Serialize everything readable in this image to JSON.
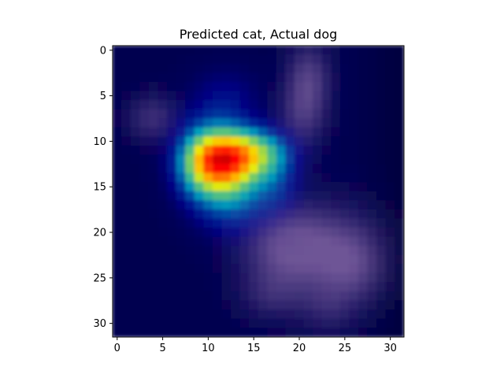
{
  "chart_data": {
    "type": "heatmap",
    "title": "Predicted cat, Actual dog",
    "xlabel": "",
    "ylabel": "",
    "image_shape": [
      32,
      32
    ],
    "xlim": [
      -0.5,
      31.5
    ],
    "ylim": [
      31.5,
      -0.5
    ],
    "y_axis_inverted": true,
    "x_ticks": [
      0,
      5,
      10,
      15,
      20,
      25,
      30
    ],
    "y_ticks": [
      0,
      5,
      10,
      15,
      20,
      25,
      30
    ],
    "colormap": "jet",
    "grid": false,
    "legend": "none",
    "overlay_description": "Class-activation heatmap overlaid on a blurred photo of a dog; activation peaks around column 12, row 12.",
    "heat_peak": {
      "col": 12,
      "row": 12
    },
    "heatmap_components": [
      {
        "col": 12,
        "row": 12,
        "sigma_col": 3.0,
        "sigma_row": 2.6,
        "weight": 1.0
      },
      {
        "col": 9,
        "row": 12.5,
        "sigma_col": 2.5,
        "sigma_row": 3.5,
        "weight": 0.55
      },
      {
        "col": 16,
        "row": 11,
        "sigma_col": 3.0,
        "sigma_row": 2.0,
        "weight": 0.5
      },
      {
        "col": 13,
        "row": 17,
        "sigma_col": 3.0,
        "sigma_row": 3.0,
        "weight": 0.45
      },
      {
        "col": 12,
        "row": 5,
        "sigma_col": 3.0,
        "sigma_row": 2.5,
        "weight": 0.3
      },
      {
        "col": 18,
        "row": 15,
        "sigma_col": 2.0,
        "sigma_row": 3.0,
        "weight": 0.3
      }
    ],
    "background_color": "#00004f",
    "underlay_color": "#8a6aa8",
    "underlay_regions": [
      {
        "label": "left ear",
        "col": 4,
        "row": 7.5,
        "sigma_col": 2.0,
        "sigma_row": 1.8,
        "weight": 0.55
      },
      {
        "label": "right ear",
        "col": 21,
        "row": 3.5,
        "sigma_col": 1.7,
        "sigma_row": 3.0,
        "weight": 0.75
      },
      {
        "label": "right ear base",
        "col": 20,
        "row": 8,
        "sigma_col": 1.8,
        "sigma_row": 2.5,
        "weight": 0.45
      },
      {
        "label": "body",
        "col": 22,
        "row": 22,
        "sigma_col": 4.5,
        "sigma_row": 3.5,
        "weight": 0.75
      },
      {
        "label": "chest",
        "col": 18,
        "row": 21,
        "sigma_col": 3.0,
        "sigma_row": 3.0,
        "weight": 0.55
      },
      {
        "label": "hindquarters",
        "col": 26,
        "row": 24,
        "sigma_col": 2.5,
        "sigma_row": 3.0,
        "weight": 0.5
      },
      {
        "label": "front legs",
        "col": 17,
        "row": 27,
        "sigma_col": 2.5,
        "sigma_row": 2.0,
        "weight": 0.35
      },
      {
        "label": "hind legs",
        "col": 23,
        "row": 28.5,
        "sigma_col": 2.0,
        "sigma_row": 2.0,
        "weight": 0.3
      }
    ]
  }
}
